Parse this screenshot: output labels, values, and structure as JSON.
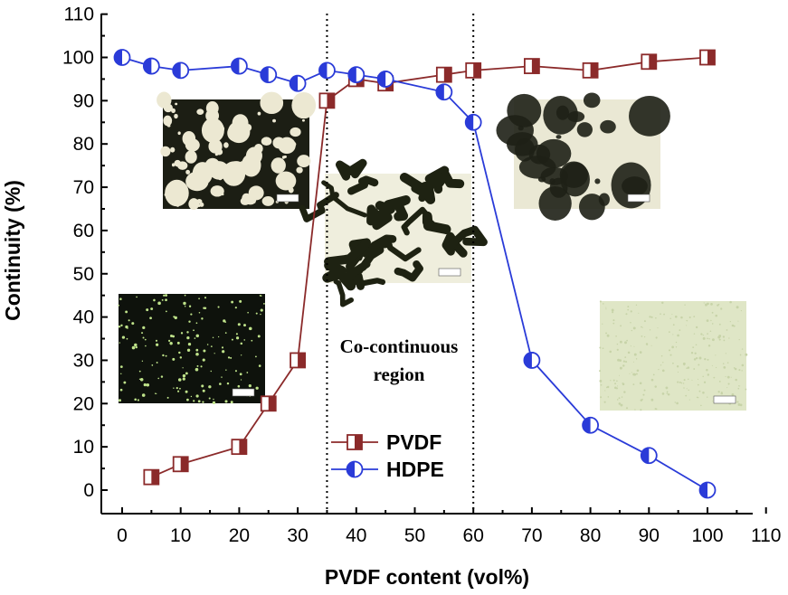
{
  "chart_data": {
    "type": "line",
    "xlabel": "PVDF content (vol%)",
    "ylabel": "Continuity (%)",
    "xlim": [
      0,
      110
    ],
    "ylim": [
      0,
      110
    ],
    "x_ticks": [
      0,
      10,
      20,
      30,
      40,
      50,
      60,
      70,
      80,
      90,
      100,
      110
    ],
    "y_ticks": [
      0,
      10,
      20,
      30,
      40,
      50,
      60,
      70,
      80,
      90,
      100,
      110
    ],
    "grid": false,
    "legend_position": "bottom-center",
    "series": [
      {
        "name": "PVDF",
        "color": "#8b2a2a",
        "marker": "half-filled-square",
        "x": [
          5,
          10,
          20,
          25,
          30,
          35,
          40,
          45,
          55,
          60,
          70,
          80,
          90,
          100
        ],
        "y": [
          3,
          6,
          10,
          20,
          30,
          90,
          95,
          94,
          96,
          97,
          98,
          97,
          99,
          100
        ]
      },
      {
        "name": "HDPE",
        "color": "#2a3bd8",
        "marker": "half-filled-circle",
        "x": [
          0,
          5,
          10,
          20,
          25,
          30,
          35,
          40,
          45,
          55,
          60,
          70,
          80,
          90,
          100
        ],
        "y": [
          100,
          98,
          97,
          98,
          96,
          94,
          97,
          96,
          95,
          92,
          85,
          30,
          15,
          8,
          0
        ]
      }
    ],
    "vertical_lines": [
      35,
      60
    ],
    "annotations": [
      {
        "line1": "Co-continuous",
        "line2": "region"
      }
    ],
    "inset_images": [
      {
        "name": "micrograph-sea-island",
        "tone": "dark-with-light-droplets"
      },
      {
        "name": "micrograph-co-continuous",
        "tone": "mixed"
      },
      {
        "name": "micrograph-dark-phase",
        "tone": "light-with-dark-patches"
      },
      {
        "name": "micrograph-dark-dots",
        "tone": "dark-with-green-dots"
      },
      {
        "name": "micrograph-uniform",
        "tone": "light-uniform"
      }
    ]
  }
}
